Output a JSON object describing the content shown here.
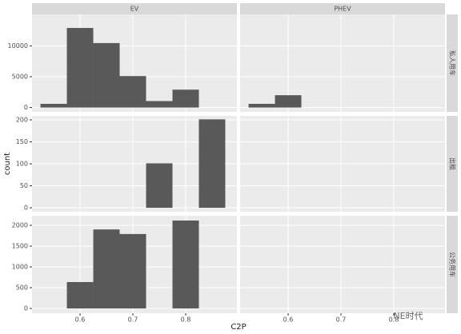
{
  "chart_data": {
    "type": "histogram",
    "x_label": "C2P",
    "y_label": "count",
    "columns": [
      "EV",
      "PHEV"
    ],
    "bins": [
      0.525,
      0.575,
      0.625,
      0.675,
      0.725,
      0.775,
      0.825,
      0.875
    ],
    "xlim": [
      0.509,
      0.897
    ],
    "xticks": [
      0.6,
      0.7,
      0.8
    ],
    "color": "#595959",
    "grid": true,
    "rows": [
      {
        "label": "私人用车",
        "ylim": [
          -700,
          15100
        ],
        "yticks": [
          0,
          5000,
          10000
        ],
        "values": [
          [
            600,
            12900,
            10450,
            5100,
            1050,
            2900,
            0
          ],
          [
            600,
            2000,
            0,
            0,
            0,
            0,
            0
          ]
        ]
      },
      {
        "label": "出租",
        "ylim": [
          -9,
          209
        ],
        "yticks": [
          0,
          50,
          100,
          150,
          200
        ],
        "values": [
          [
            0,
            0,
            0,
            0,
            101,
            0,
            201
          ],
          [
            0,
            0,
            0,
            0,
            0,
            0,
            0
          ]
        ]
      },
      {
        "label": "公务用车",
        "ylim": [
          -115,
          2230
        ],
        "yticks": [
          0,
          500,
          1000,
          1500,
          2000
        ],
        "values": [
          [
            0,
            635,
            1900,
            1790,
            0,
            2115,
            0
          ],
          [
            0,
            0,
            0,
            0,
            0,
            0,
            0
          ]
        ]
      }
    ],
    "watermark": "NE时代"
  }
}
